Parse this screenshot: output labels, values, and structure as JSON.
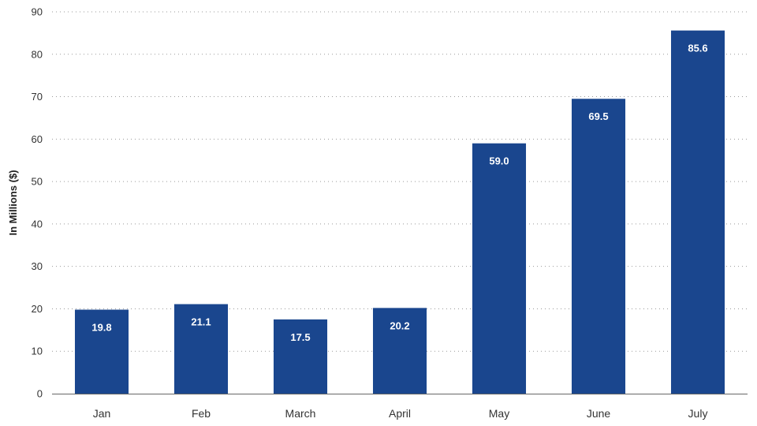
{
  "chart_data": {
    "type": "bar",
    "title": "",
    "xlabel": "",
    "ylabel": "In Millions ($)",
    "ylim": [
      0,
      90
    ],
    "yticks": [
      0,
      10,
      20,
      30,
      40,
      50,
      60,
      70,
      80,
      90
    ],
    "grid": true,
    "legend": "none",
    "categories": [
      "Jan",
      "Feb",
      "March",
      "April",
      "May",
      "June",
      "July"
    ],
    "values": [
      19.8,
      21.1,
      17.5,
      20.2,
      59.0,
      69.5,
      85.6
    ],
    "data_labels": [
      "19.8",
      "21.1",
      "17.5",
      "20.2",
      "59.0",
      "69.5",
      "85.6"
    ],
    "bar_color": "#1a468e",
    "label_color": "#ffffff"
  }
}
